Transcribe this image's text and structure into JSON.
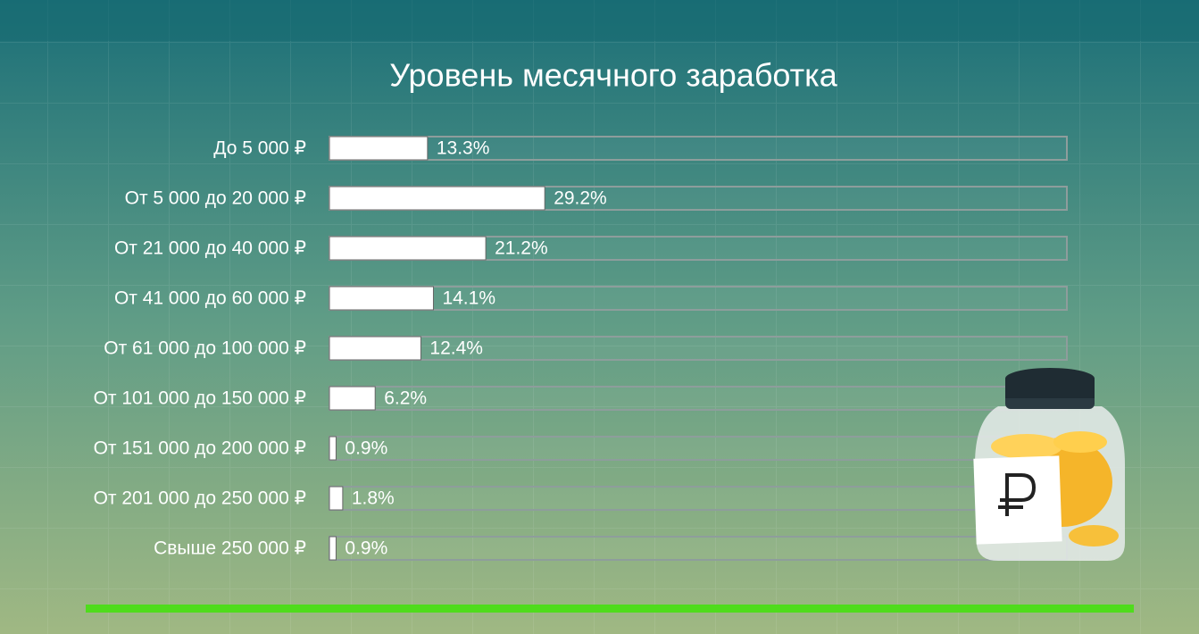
{
  "chart_data": {
    "type": "bar",
    "orientation": "horizontal",
    "title": "Уровень месячного заработка",
    "categories": [
      "До 5 000 ₽",
      "От 5 000 до 20 000 ₽",
      "От 21 000 до 40 000 ₽",
      "От 41 000 до 60 000 ₽",
      "От 61 000 до 100 000 ₽",
      "От 101 000 до 150 000 ₽",
      "От 151 000 до 200 000 ₽",
      "От 201 000 до 250 000 ₽",
      "Свыше 250 000 ₽"
    ],
    "values": [
      13.3,
      29.2,
      21.2,
      14.1,
      12.4,
      6.2,
      0.9,
      1.8,
      0.9
    ],
    "value_labels": [
      "13.3%",
      "29.2%",
      "21.2%",
      "14.1%",
      "12.4%",
      "6.2%",
      "0.9%",
      "1.8%",
      "0.9%"
    ],
    "xlim": [
      0,
      100
    ],
    "color": "#ffffff"
  }
}
